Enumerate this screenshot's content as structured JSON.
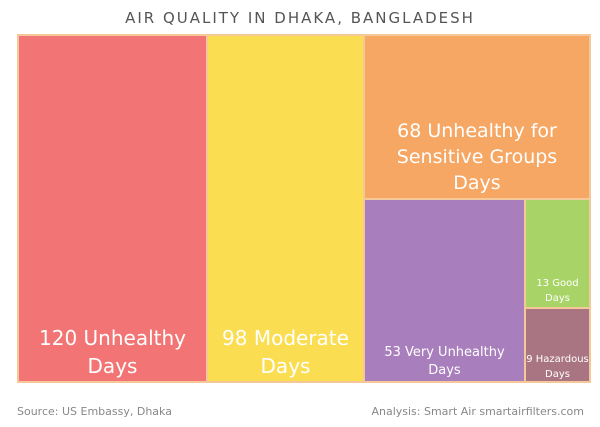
{
  "chart_data": {
    "type": "treemap",
    "title": "AIR QUALITY IN DHAKA, BANGLADESH",
    "unit": "Days",
    "tiles": [
      {
        "name": "Unhealthy",
        "value": 120,
        "label_lines": [
          "120 Unhealthy",
          "Days"
        ],
        "color": "#F27474"
      },
      {
        "name": "Moderate",
        "value": 98,
        "label_lines": [
          "98 Moderate",
          "Days"
        ],
        "color": "#FADD50"
      },
      {
        "name": "Unhealthy for Sensitive Groups",
        "value": 68,
        "label_lines": [
          "68 Unhealthy for",
          "Sensitive Groups",
          "Days"
        ],
        "color": "#F6A764"
      },
      {
        "name": "Very Unhealthy",
        "value": 53,
        "label_lines": [
          "53 Very Unhealthy",
          "Days"
        ],
        "color": "#A97EBC"
      },
      {
        "name": "Good",
        "value": 13,
        "label_lines": [
          "13 Good",
          "Days"
        ],
        "color": "#A8D467"
      },
      {
        "name": "Hazardous",
        "value": 9,
        "label_lines": [
          "9 Hazardous",
          "Days"
        ],
        "color": "#A97583"
      }
    ],
    "border_color": "#F5C89A"
  },
  "footer": {
    "source": "Source: US Embassy, Dhaka",
    "analysis": "Analysis: Smart Air smartairfilters.com"
  }
}
